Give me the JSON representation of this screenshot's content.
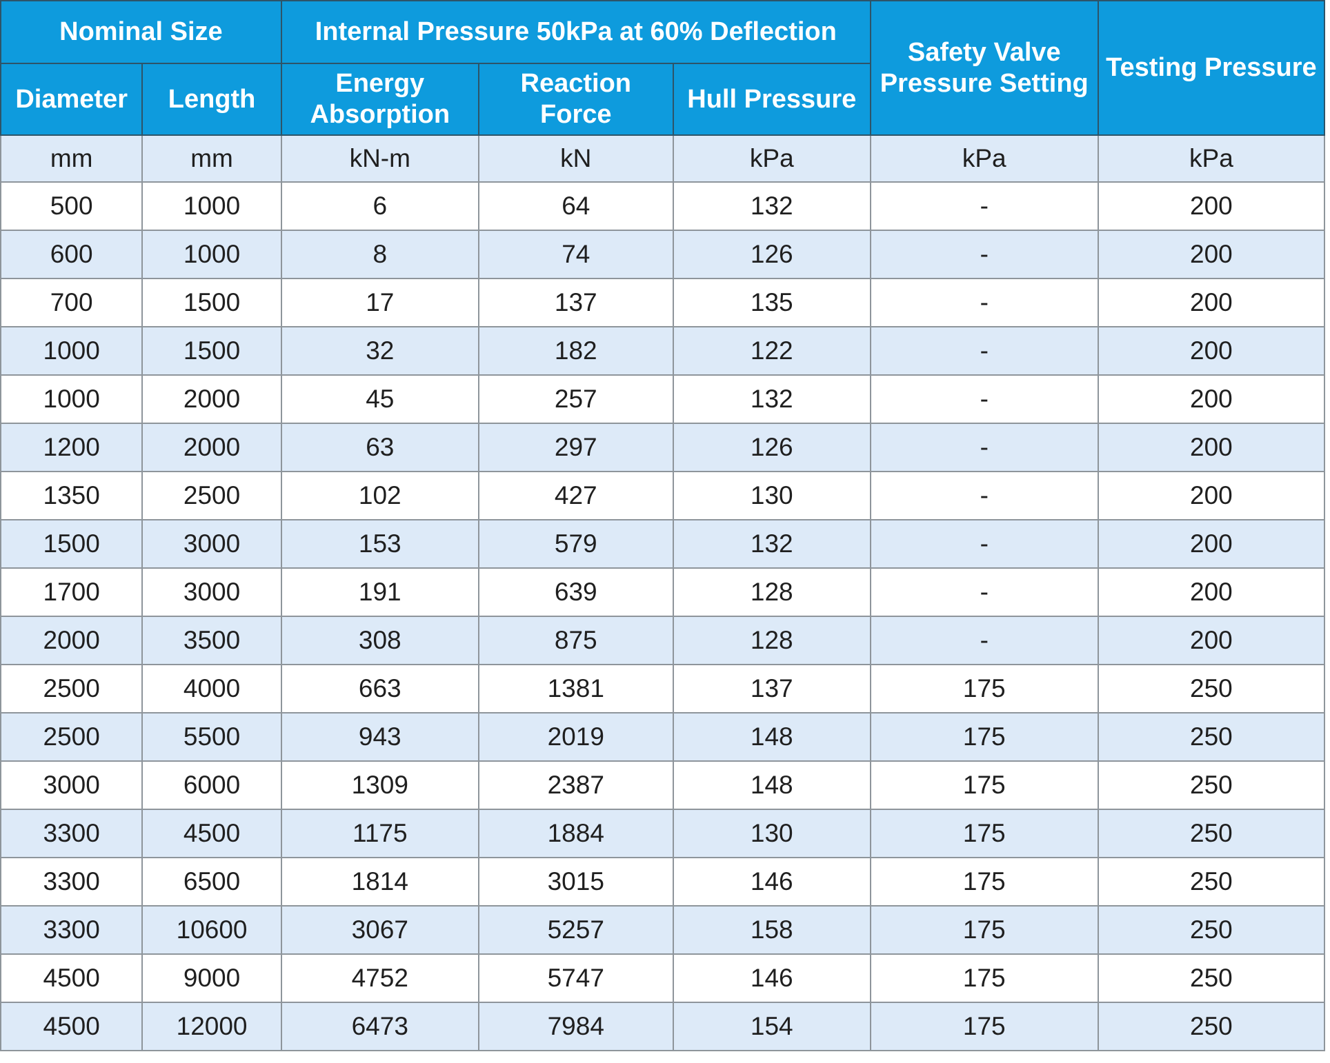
{
  "colors": {
    "header_bg": "#0e9bdd",
    "header_text": "#ffffff",
    "row_bg": "#ffffff",
    "row_alt_bg": "#ddeaf8",
    "body_text": "#1f1f1f",
    "grid_body": "#8e959b",
    "grid_header": "#2d5468"
  },
  "table": {
    "header": {
      "nominal_size": "Nominal Size",
      "internal_pressure": "Internal Pressure 50kPa at 60% Deflection",
      "safety_valve": "Safety Valve Pressure Setting",
      "testing_pressure": "Testing Pressure",
      "diameter": "Diameter",
      "length": "Length",
      "energy_absorption": "Energy Absorption",
      "reaction_force": "Reaction Force",
      "hull_pressure": "Hull Pressure"
    },
    "units": [
      "mm",
      "mm",
      "kN-m",
      "kN",
      "kPa",
      "kPa",
      "kPa"
    ],
    "rows": [
      [
        500,
        1000,
        6,
        64,
        132,
        "-",
        200
      ],
      [
        600,
        1000,
        8,
        74,
        126,
        "-",
        200
      ],
      [
        700,
        1500,
        17,
        137,
        135,
        "-",
        200
      ],
      [
        1000,
        1500,
        32,
        182,
        122,
        "-",
        200
      ],
      [
        1000,
        2000,
        45,
        257,
        132,
        "-",
        200
      ],
      [
        1200,
        2000,
        63,
        297,
        126,
        "-",
        200
      ],
      [
        1350,
        2500,
        102,
        427,
        130,
        "-",
        200
      ],
      [
        1500,
        3000,
        153,
        579,
        132,
        "-",
        200
      ],
      [
        1700,
        3000,
        191,
        639,
        128,
        "-",
        200
      ],
      [
        2000,
        3500,
        308,
        875,
        128,
        "-",
        200
      ],
      [
        2500,
        4000,
        663,
        1381,
        137,
        175,
        250
      ],
      [
        2500,
        5500,
        943,
        2019,
        148,
        175,
        250
      ],
      [
        3000,
        6000,
        1309,
        2387,
        148,
        175,
        250
      ],
      [
        3300,
        4500,
        1175,
        1884,
        130,
        175,
        250
      ],
      [
        3300,
        6500,
        1814,
        3015,
        146,
        175,
        250
      ],
      [
        3300,
        10600,
        3067,
        5257,
        158,
        175,
        250
      ],
      [
        4500,
        9000,
        4752,
        5747,
        146,
        175,
        250
      ],
      [
        4500,
        12000,
        6473,
        7984,
        154,
        175,
        250
      ]
    ]
  }
}
